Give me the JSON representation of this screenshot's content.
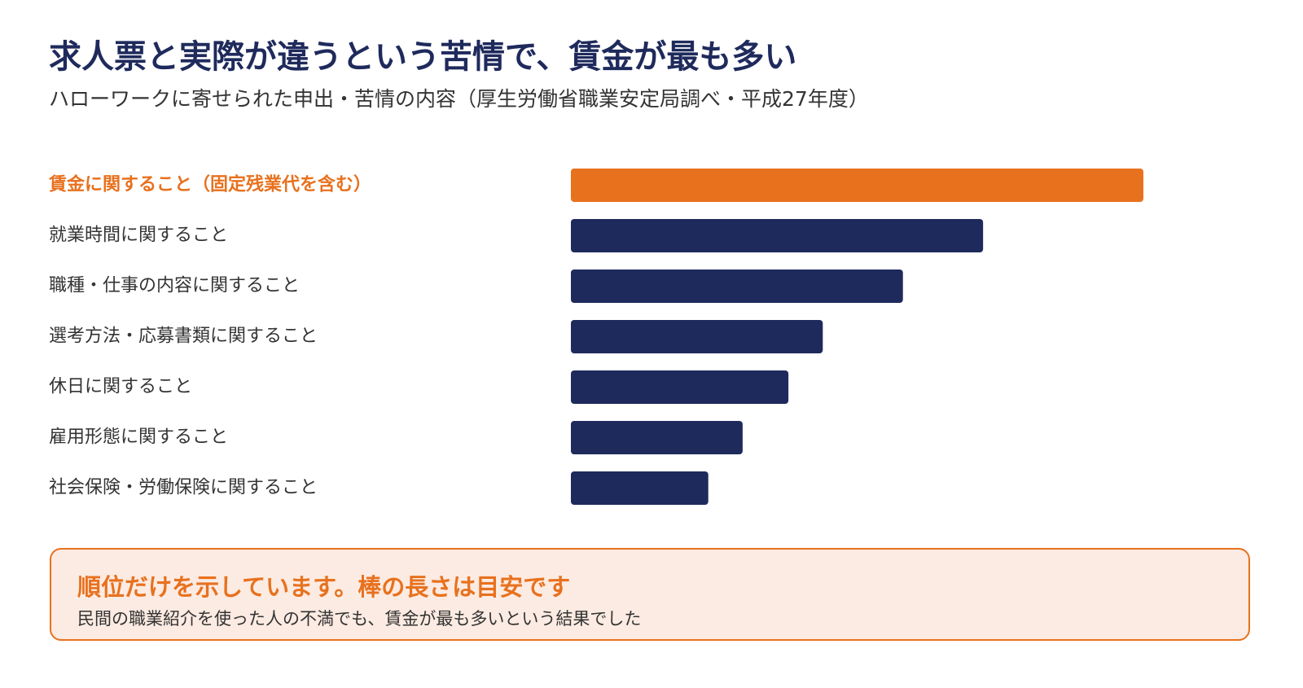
{
  "header": {
    "title": "求人票と実際が違うという苦情で、賃金が最も多い",
    "subtitle": "ハローワークに寄せられた申出・苦情の内容（厚生労働省職業安定局調べ・平成27年度）"
  },
  "chart_data": {
    "type": "bar",
    "orientation": "horizontal",
    "title": "",
    "xlabel": "",
    "ylabel": "",
    "value_axis_shown": false,
    "grid": false,
    "categories": [
      "賃金に関すること（固定残業代を含む）",
      "就業時間に関すること",
      "職種・仕事の内容に関すること",
      "選考方法・応募書類に関すること",
      "休日に関すること",
      "雇用形態に関すること",
      "社会保険・労働保険に関すること"
    ],
    "values": [
      100,
      72,
      58,
      44,
      38,
      30,
      24
    ],
    "highlight_index": 0,
    "colors": {
      "highlight": "#e8711e",
      "default": "#1f2a5c"
    }
  },
  "note": {
    "heading": "順位だけを示しています。棒の長さは目安です",
    "body": "民間の職業紹介を使った人の不満でも、賃金が最も多いという結果でした"
  }
}
